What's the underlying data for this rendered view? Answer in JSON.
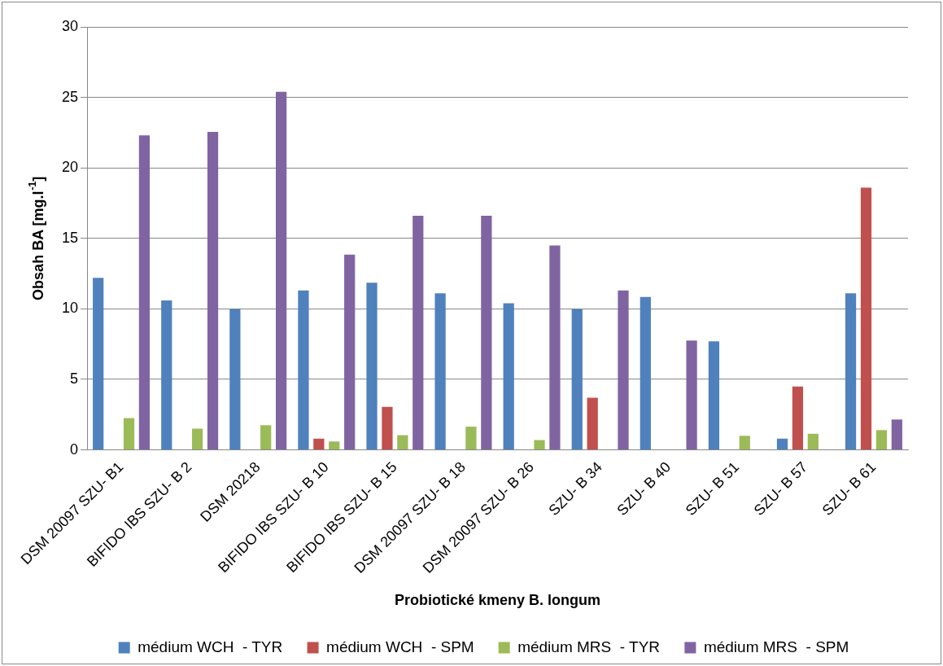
{
  "chart_data": {
    "type": "bar",
    "xlabel": "Probiotické kmeny B. longum",
    "ylabel": "Obsah BA [mg.l$^{-1}$]",
    "categories": [
      "DSM 20097 SZU- B1",
      "BIFIDO IBS SZU- B 2",
      "DSM 20218",
      "BIFIDO IBS SZU- B 10",
      "BIFIDO IBS SZU- B 15",
      "DSM 20097 SZU- B 18",
      "DSM 20097 SZU- B 26",
      "SZU- B 34",
      "SZU- B 40",
      "SZU- B 51",
      "SZU- B 57",
      "SZU- B 61"
    ],
    "series": [
      {
        "name": "médium WCH  - TYR",
        "color": "#4f81bd",
        "values": [
          12.2,
          10.6,
          10.0,
          11.3,
          11.85,
          11.1,
          10.4,
          10.0,
          10.85,
          7.7,
          0.8,
          11.1
        ]
      },
      {
        "name": "médium WCH  - SPM",
        "color": "#c0504d",
        "values": [
          null,
          null,
          null,
          0.8,
          3.05,
          null,
          null,
          3.7,
          null,
          null,
          4.5,
          18.6
        ]
      },
      {
        "name": "médium MRS  - TYR",
        "color": "#9bbb59",
        "values": [
          2.25,
          1.5,
          1.75,
          0.6,
          1.05,
          1.65,
          0.7,
          null,
          null,
          1.0,
          1.15,
          1.4
        ]
      },
      {
        "name": "médium MRS  - SPM",
        "color": "#8064a2",
        "values": [
          22.3,
          22.55,
          25.4,
          13.85,
          16.6,
          16.6,
          14.5,
          11.3,
          7.75,
          null,
          null,
          2.15
        ]
      }
    ],
    "ylim": [
      0,
      30
    ],
    "yticks": [
      0,
      5,
      10,
      15,
      20,
      25,
      30
    ],
    "grid": "y",
    "legend": "bottom"
  }
}
